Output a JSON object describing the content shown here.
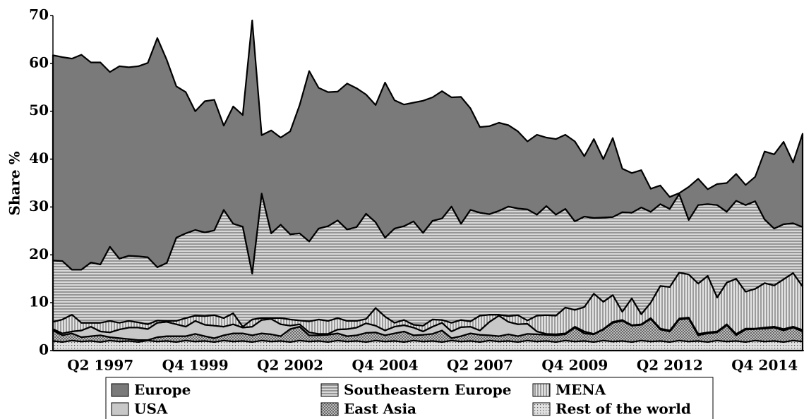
{
  "chart_data": {
    "type": "stacked_area",
    "y_label": "Share %",
    "ylim": [
      0,
      70
    ],
    "yticks": [
      0,
      10,
      20,
      30,
      40,
      50,
      60,
      70
    ],
    "legend": "bottom",
    "categories": [
      null,
      null,
      null,
      null,
      null,
      "Q2 1997",
      null,
      null,
      null,
      null,
      null,
      null,
      null,
      null,
      null,
      "Q4 1999",
      null,
      null,
      null,
      null,
      null,
      null,
      null,
      null,
      null,
      "Q2 2002",
      null,
      null,
      null,
      null,
      null,
      null,
      null,
      null,
      null,
      "Q4 2004",
      null,
      null,
      null,
      null,
      null,
      null,
      null,
      null,
      null,
      "Q2 2007",
      null,
      null,
      null,
      null,
      null,
      null,
      null,
      null,
      null,
      "Q4 2009",
      null,
      null,
      null,
      null,
      null,
      null,
      null,
      null,
      null,
      "Q2 2012",
      null,
      null,
      null,
      null,
      null,
      null,
      null,
      null,
      null,
      "Q4 2014",
      null,
      null,
      null,
      null
    ],
    "series": [
      {
        "name": "Europe",
        "color": "#7a7a7a",
        "pattern": "solid",
        "values": [
          42.9,
          42.6,
          44.1,
          44.9,
          41.8,
          42.2,
          36.5,
          40.2,
          39.4,
          39.7,
          40.6,
          47.9,
          42.4,
          31.6,
          29.5,
          24.8,
          27.4,
          27.3,
          17.6,
          24.5,
          23.3,
          52.9,
          12.2,
          21.5,
          18.2,
          21.5,
          26.8,
          35.6,
          29.4,
          28,
          26.9,
          30.5,
          29,
          24.9,
          24.5,
          32.4,
          26.8,
          25.4,
          24.8,
          27.6,
          25.8,
          26.6,
          22.8,
          26.5,
          21.2,
          17.9,
          18.4,
          18.4,
          17,
          16.1,
          14.2,
          16.7,
          14.3,
          15.8,
          15.5,
          16.7,
          12.6,
          16.5,
          12.2,
          16.5,
          9.1,
          8.3,
          7.8,
          4.8,
          3.9,
          2.5,
          0.2,
          6.9,
          5.5,
          3.1,
          4.4,
          6,
          5.6,
          4.2,
          5.1,
          14.2,
          15.5,
          17.2,
          12.7,
          19.5
        ]
      },
      {
        "name": "Southeastern Europe",
        "color": "#d8d8d8",
        "pattern": "horizontal",
        "values": [
          12.8,
          12.2,
          9.4,
          11.1,
          12.6,
          12.2,
          15.5,
          13.4,
          13.6,
          13.8,
          14,
          11.1,
          12.1,
          17.4,
          17.7,
          17.9,
          17.5,
          17.7,
          22.6,
          18.7,
          20.9,
          9.6,
          26,
          17.7,
          19.5,
          17.8,
          18.2,
          16.7,
          19,
          19.8,
          20.4,
          19.1,
          19.6,
          22,
          17.9,
          16.5,
          19.7,
          19.6,
          21.6,
          19.4,
          20.6,
          21.2,
          24.3,
          20.1,
          23.3,
          21.5,
          21,
          21.7,
          22.9,
          22.3,
          23.2,
          21.1,
          22.8,
          21.1,
          20.6,
          18.5,
          18.9,
          15.8,
          17.6,
          16.3,
          20.8,
          17.9,
          22.3,
          19,
          17.1,
          16.3,
          16.4,
          11.4,
          16.4,
          15,
          19.3,
          14.8,
          16.3,
          18.1,
          18.3,
          13.3,
          11.9,
          11.5,
          10.4,
          12.4
        ]
      },
      {
        "name": "MENA",
        "color": "#e4e4e4",
        "pattern": "vertical",
        "values": [
          1.5,
          2.9,
          3.5,
          1.6,
          0.8,
          1.8,
          2.4,
          1.4,
          1.4,
          1.1,
          1,
          0.5,
          0.2,
          0.7,
          1.8,
          1.1,
          1.8,
          2.2,
          1.8,
          2.3,
          0.2,
          1.5,
          0.4,
          0.2,
          1.3,
          1.3,
          0.8,
          2.3,
          3,
          2.7,
          2.4,
          1.7,
          1.4,
          0.9,
          3.7,
          2.9,
          0.8,
          1.1,
          0.6,
          1.2,
          1.5,
          0.6,
          1.8,
          1.5,
          1.1,
          3.1,
          1.5,
          0.2,
          1.2,
          1.9,
          0.7,
          3.3,
          3.9,
          3.9,
          5.4,
          3.5,
          5.1,
          8.4,
          5.7,
          5.6,
          1.7,
          5.6,
          2.1,
          3.2,
          8.9,
          9.1,
          9.6,
          9,
          10.5,
          11.8,
          7.1,
          8.7,
          11.5,
          7.7,
          8.3,
          9.3,
          8.6,
          10.4,
          11.2,
          9.1
        ]
      },
      {
        "name": "USA",
        "color": "#c8c8c8",
        "pattern": "solid",
        "values": [
          0.3,
          0.4,
          0.4,
          1.4,
          2,
          0.8,
          1,
          1.8,
          2.4,
          2.6,
          2.3,
          3,
          3,
          2.5,
          2,
          2.7,
          2.4,
          2.6,
          1.8,
          1.9,
          1.2,
          1.8,
          2.8,
          3.2,
          2.5,
          0.7,
          0.5,
          0.6,
          0.3,
          0.2,
          0.8,
          1.5,
          1.6,
          2,
          1.4,
          1,
          1.4,
          1.3,
          1.6,
          0.7,
          1.5,
          1.6,
          1.4,
          1.9,
          1.4,
          0.9,
          2.8,
          4.3,
          2.6,
          2.5,
          2.1,
          0.6,
          0.2,
          0.2,
          0.2,
          0.2,
          0.4,
          0.1,
          0.1,
          0.2,
          0.2,
          0.1,
          0.1,
          0.2,
          0.2,
          0.2,
          0.2,
          0.2,
          0.3,
          0.2,
          0.2,
          0.2,
          0.3,
          0.2,
          0.1,
          0.2,
          0.2,
          0.3,
          0.2,
          0.3
        ]
      },
      {
        "name": "East Asia",
        "color": "#d4d4d4",
        "pattern": "cross",
        "values": [
          2.2,
          1.4,
          1.5,
          0.9,
          1,
          1.4,
          0.7,
          0.7,
          0.4,
          0.4,
          0.1,
          0.9,
          1,
          1.2,
          0.9,
          1.6,
          1,
          0.8,
          1.1,
          1.7,
          1.6,
          1.4,
          1.5,
          1.5,
          1,
          2.7,
          2.9,
          1.3,
          1.2,
          1.5,
          1.5,
          1.1,
          1.2,
          1.9,
          1.7,
          1.3,
          1.6,
          2.2,
          1.1,
          1.4,
          1.5,
          2.4,
          0.5,
          1.1,
          1.6,
          1.5,
          1.1,
          1.1,
          1.4,
          1.2,
          1.4,
          1.5,
          1.3,
          1.4,
          1.3,
          2.9,
          1.6,
          1.6,
          2.3,
          3.9,
          4.2,
          3.4,
          3.3,
          4.7,
          2.4,
          2.2,
          4.4,
          4.8,
          1.2,
          1.8,
          1.7,
          3.4,
          1.2,
          2.6,
          2.4,
          2.7,
          2.8,
          2.4,
          2.7,
          2.1
        ]
      },
      {
        "name": "Rest of the world",
        "color": "#e0e0e0",
        "pattern": "dots",
        "values": [
          2,
          1.8,
          2.1,
          1.9,
          2,
          1.8,
          2.1,
          1.9,
          2,
          1.8,
          2.1,
          1.9,
          2,
          1.8,
          2.1,
          1.9,
          2,
          1.8,
          2.1,
          1.9,
          2,
          1.8,
          2.1,
          1.9,
          2,
          1.8,
          2.1,
          1.9,
          2,
          1.8,
          2.1,
          1.9,
          2,
          1.8,
          2.1,
          1.9,
          2,
          1.8,
          2.1,
          1.9,
          2,
          1.8,
          2.1,
          1.9,
          2,
          1.8,
          2.1,
          1.9,
          2,
          1.8,
          2.1,
          1.9,
          2,
          1.8,
          2.1,
          1.9,
          2,
          1.8,
          2.1,
          1.9,
          2,
          1.8,
          2.1,
          1.9,
          2,
          1.8,
          2.1,
          1.9,
          2,
          1.8,
          2.1,
          1.9,
          2,
          1.8,
          2.1,
          1.9,
          2,
          1.8,
          2.1,
          1.9
        ]
      }
    ]
  }
}
